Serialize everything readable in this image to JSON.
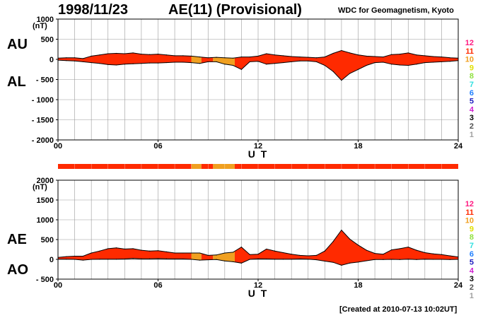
{
  "header": {
    "date": "1998/11/23",
    "title": "AE(11) (Provisional)",
    "source": "WDC for Geomagnetism, Kyoto"
  },
  "footer": {
    "created": "[Created at 2010-07-13 10:02UT]"
  },
  "colors": {
    "main": "#ff3300",
    "secondary": "#f0a020",
    "outline": "#000000",
    "grid": "#999999"
  },
  "chart_data": [
    {
      "type": "area",
      "panel": "top",
      "left_labels": [
        "AU",
        "AL"
      ],
      "unit": "(nT)",
      "xlabel": "U T",
      "xlim": [
        0,
        24
      ],
      "xticks": [
        "00",
        "06",
        "12",
        "18",
        "24"
      ],
      "ylim": [
        -2000,
        1000
      ],
      "yticks": [
        "1000",
        "500",
        "0",
        "- 500",
        "- 1000",
        "- 1500",
        "- 2000"
      ],
      "grid": true,
      "legend": [
        "12",
        "11",
        "10",
        "9",
        "8",
        "7",
        "6",
        "5",
        "4",
        "3",
        "2",
        "1"
      ],
      "x": [
        0,
        0.5,
        1,
        1.5,
        2,
        2.5,
        3,
        3.5,
        4,
        4.5,
        5,
        5.5,
        6,
        6.5,
        7,
        7.5,
        8,
        8.5,
        9,
        9.5,
        10,
        10.5,
        11,
        11.5,
        12,
        12.5,
        13,
        13.5,
        14,
        14.5,
        15,
        15.5,
        16,
        16.5,
        17,
        17.5,
        18,
        18.5,
        19,
        19.5,
        20,
        20.5,
        21,
        21.5,
        22,
        22.5,
        23,
        23.5,
        24
      ],
      "series": [
        {
          "name": "AU",
          "values": [
            30,
            40,
            40,
            20,
            80,
            110,
            140,
            150,
            140,
            160,
            130,
            120,
            130,
            110,
            90,
            90,
            80,
            60,
            40,
            50,
            40,
            30,
            60,
            60,
            80,
            140,
            110,
            90,
            70,
            60,
            50,
            40,
            60,
            150,
            220,
            160,
            110,
            80,
            70,
            60,
            120,
            130,
            160,
            110,
            90,
            70,
            60,
            40,
            30
          ]
        },
        {
          "name": "AL",
          "values": [
            -20,
            -30,
            -40,
            -60,
            -80,
            -100,
            -130,
            -140,
            -120,
            -110,
            -100,
            -90,
            -90,
            -80,
            -70,
            -70,
            -80,
            -100,
            -60,
            -60,
            -120,
            -150,
            -250,
            -60,
            -50,
            -120,
            -100,
            -80,
            -60,
            -40,
            -40,
            -60,
            -150,
            -300,
            -520,
            -350,
            -250,
            -150,
            -80,
            -70,
            -120,
            -140,
            -150,
            -120,
            -80,
            -70,
            -60,
            -50,
            -30
          ]
        }
      ]
    },
    {
      "type": "area",
      "panel": "bottom",
      "left_labels": [
        "AE",
        "AO"
      ],
      "unit": "(nT)",
      "xlabel": "U T",
      "xlim": [
        0,
        24
      ],
      "xticks": [
        "00",
        "06",
        "12",
        "18",
        "24"
      ],
      "ylim": [
        -500,
        2000
      ],
      "yticks": [
        "2000",
        "1500",
        "1000",
        "500",
        "0",
        "- 500"
      ],
      "grid": true,
      "legend": [
        "12",
        "11",
        "10",
        "9",
        "8",
        "7",
        "6",
        "5",
        "4",
        "3",
        "2",
        "1"
      ],
      "x": [
        0,
        0.5,
        1,
        1.5,
        2,
        2.5,
        3,
        3.5,
        4,
        4.5,
        5,
        5.5,
        6,
        6.5,
        7,
        7.5,
        8,
        8.5,
        9,
        9.5,
        10,
        10.5,
        11,
        11.5,
        12,
        12.5,
        13,
        13.5,
        14,
        14.5,
        15,
        15.5,
        16,
        16.5,
        17,
        17.5,
        18,
        18.5,
        19,
        19.5,
        20,
        20.5,
        21,
        21.5,
        22,
        22.5,
        23,
        23.5,
        24
      ],
      "series": [
        {
          "name": "AE",
          "values": [
            50,
            70,
            80,
            80,
            160,
            210,
            270,
            290,
            260,
            270,
            230,
            210,
            220,
            190,
            160,
            160,
            160,
            160,
            100,
            110,
            160,
            180,
            310,
            120,
            130,
            260,
            210,
            170,
            130,
            100,
            90,
            100,
            210,
            450,
            740,
            510,
            360,
            230,
            150,
            130,
            240,
            270,
            310,
            230,
            170,
            140,
            120,
            90,
            60
          ]
        },
        {
          "name": "AO",
          "values": [
            5,
            5,
            0,
            -20,
            0,
            5,
            5,
            5,
            10,
            25,
            15,
            15,
            20,
            15,
            10,
            10,
            0,
            -20,
            -10,
            -5,
            -40,
            -60,
            -95,
            0,
            15,
            10,
            5,
            5,
            5,
            10,
            5,
            -10,
            -45,
            -75,
            -150,
            -95,
            -70,
            -35,
            -5,
            -5,
            0,
            -5,
            5,
            -5,
            5,
            0,
            0,
            -5,
            0
          ]
        }
      ]
    }
  ],
  "bar_strip": {
    "segments": [
      {
        "from": 0,
        "to": 8.0,
        "level": "11"
      },
      {
        "from": 8.0,
        "to": 8.6,
        "level": "10"
      },
      {
        "from": 8.6,
        "to": 9.3,
        "level": "11"
      },
      {
        "from": 9.3,
        "to": 10.6,
        "level": "10"
      },
      {
        "from": 10.6,
        "to": 24,
        "level": "11"
      }
    ]
  },
  "series_levels": [
    {
      "from": 0,
      "to": 8.0,
      "level": "11"
    },
    {
      "from": 8.0,
      "to": 8.6,
      "level": "10"
    },
    {
      "from": 8.6,
      "to": 9.3,
      "level": "11"
    },
    {
      "from": 9.3,
      "to": 10.6,
      "level": "10"
    },
    {
      "from": 10.6,
      "to": 24,
      "level": "11"
    }
  ],
  "legend_colors": {
    "12": "#ff1a80",
    "11": "#ff2a00",
    "10": "#f0a020",
    "9": "#e0e000",
    "8": "#90e040",
    "7": "#30e0e0",
    "6": "#2080ff",
    "5": "#2020c0",
    "4": "#d020d0",
    "3": "#000000",
    "2": "#505050",
    "1": "#a0a0a0"
  }
}
